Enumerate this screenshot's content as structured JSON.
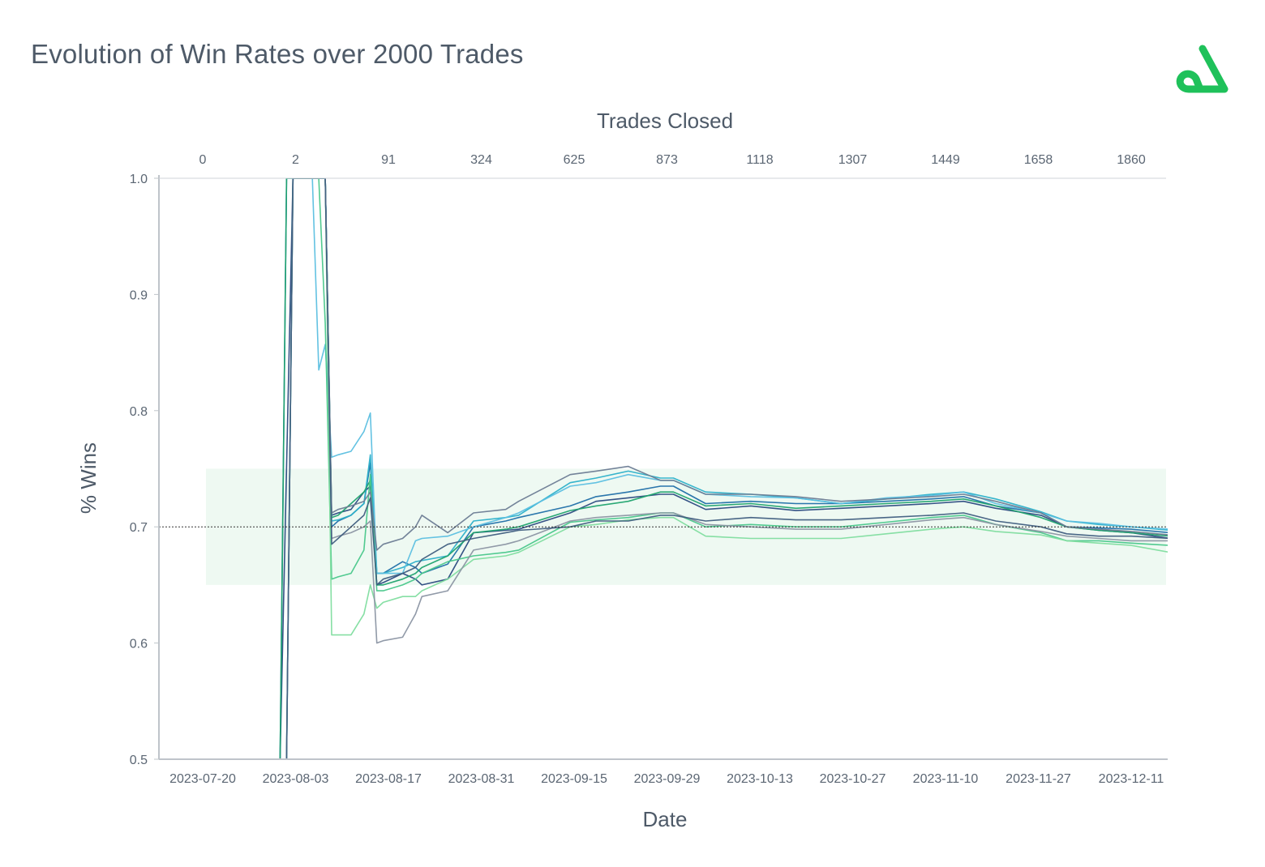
{
  "title": "Evolution of Win Rates over 2000 Trades",
  "logo": {
    "icon": "brand-logo-icon",
    "color": "#1fc15a"
  },
  "chart_data": {
    "type": "line",
    "title": "Evolution of Win Rates over 2000 Trades",
    "xlabel": "Date",
    "x2label": "Trades Closed",
    "ylabel": "% Wins",
    "ylim": [
      0.5,
      1.0
    ],
    "yticks": [
      "0.5",
      "0.6",
      "0.7",
      "0.8",
      "0.9",
      "1.0"
    ],
    "xticks": [
      "2023-07-20",
      "2023-08-03",
      "2023-08-17",
      "2023-08-31",
      "2023-09-15",
      "2023-09-29",
      "2023-10-13",
      "2023-10-27",
      "2023-11-10",
      "2023-11-27",
      "2023-12-11"
    ],
    "x2ticks": [
      "0",
      "2",
      "91",
      "324",
      "625",
      "873",
      "1118",
      "1307",
      "1449",
      "1658",
      "1860"
    ],
    "reference_line": 0.7,
    "band": [
      0.65,
      0.75
    ],
    "grid": false,
    "legend": "none",
    "colors": {
      "band": "#eef9f2",
      "reference": "#333333",
      "axis": "#bfc4ca",
      "series": [
        "#2a4a7f",
        "#1f6fa8",
        "#2bb0c9",
        "#5bbfe0",
        "#1fa36e",
        "#48c78a",
        "#7fdd9f",
        "#6b7c93",
        "#8b95a3",
        "#3f5e80"
      ]
    },
    "series": [
      {
        "x": [
          "2023-07-20",
          "2023-08-01",
          "2023-08-03",
          "2023-08-04",
          "2023-08-08",
          "2023-08-09",
          "2023-08-10",
          "2023-08-12",
          "2023-08-14",
          "2023-08-15",
          "2023-08-16",
          "2023-08-17",
          "2023-08-20",
          "2023-08-22",
          "2023-08-23",
          "2023-08-27",
          "2023-08-31",
          "2023-09-05",
          "2023-09-07",
          "2023-09-15",
          "2023-09-19",
          "2023-09-24",
          "2023-09-29",
          "2023-10-01",
          "2023-10-06",
          "2023-10-13",
          "2023-10-20",
          "2023-10-27",
          "2023-11-03",
          "2023-11-10",
          "2023-11-15",
          "2023-11-20",
          "2023-11-27",
          "2023-12-01",
          "2023-12-06",
          "2023-12-11",
          "2023-12-17"
        ],
        "y": [
          0.5,
          0.5,
          1.0,
          1.0,
          1.0,
          0.71,
          0.712,
          0.715,
          0.73,
          0.735,
          0.65,
          0.652,
          0.66,
          0.655,
          0.65,
          0.655,
          0.695,
          0.697,
          0.698,
          0.712,
          0.722,
          0.725,
          0.728,
          0.728,
          0.715,
          0.718,
          0.714,
          0.716,
          0.718,
          0.72,
          0.722,
          0.716,
          0.71,
          0.7,
          0.697,
          0.695,
          0.69
        ]
      },
      {
        "x": [
          "2023-07-20",
          "2023-08-01",
          "2023-08-02",
          "2023-08-04",
          "2023-08-08",
          "2023-08-09",
          "2023-08-10",
          "2023-08-12",
          "2023-08-14",
          "2023-08-15",
          "2023-08-16",
          "2023-08-17",
          "2023-08-20",
          "2023-08-22",
          "2023-08-23",
          "2023-08-27",
          "2023-08-31",
          "2023-09-05",
          "2023-09-07",
          "2023-09-15",
          "2023-09-19",
          "2023-09-24",
          "2023-09-29",
          "2023-10-01",
          "2023-10-06",
          "2023-10-13",
          "2023-10-20",
          "2023-10-27",
          "2023-11-03",
          "2023-11-10",
          "2023-11-15",
          "2023-11-20",
          "2023-11-27",
          "2023-12-01",
          "2023-12-06",
          "2023-12-11",
          "2023-12-17"
        ],
        "y": [
          0.5,
          0.5,
          1.0,
          1.0,
          1.0,
          0.7,
          0.705,
          0.71,
          0.72,
          0.755,
          0.66,
          0.66,
          0.67,
          0.665,
          0.66,
          0.668,
          0.7,
          0.705,
          0.708,
          0.718,
          0.726,
          0.73,
          0.735,
          0.735,
          0.72,
          0.722,
          0.72,
          0.72,
          0.722,
          0.724,
          0.726,
          0.718,
          0.712,
          0.7,
          0.699,
          0.698,
          0.695
        ]
      },
      {
        "x": [
          "2023-07-20",
          "2023-08-02",
          "2023-08-03",
          "2023-08-08",
          "2023-08-09",
          "2023-08-10",
          "2023-08-12",
          "2023-08-14",
          "2023-08-15",
          "2023-08-16",
          "2023-08-17",
          "2023-08-20",
          "2023-08-22",
          "2023-08-27",
          "2023-08-31",
          "2023-09-05",
          "2023-09-07",
          "2023-09-15",
          "2023-09-19",
          "2023-09-24",
          "2023-09-29",
          "2023-10-01",
          "2023-10-06",
          "2023-10-13",
          "2023-10-20",
          "2023-10-27",
          "2023-11-03",
          "2023-11-10",
          "2023-11-15",
          "2023-11-20",
          "2023-11-27",
          "2023-12-01",
          "2023-12-06",
          "2023-12-11",
          "2023-12-17"
        ],
        "y": [
          0.5,
          0.5,
          1.0,
          1.0,
          0.705,
          0.706,
          0.71,
          0.72,
          0.762,
          0.66,
          0.66,
          0.665,
          0.67,
          0.675,
          0.705,
          0.708,
          0.71,
          0.738,
          0.742,
          0.748,
          0.742,
          0.742,
          0.73,
          0.728,
          0.725,
          0.72,
          0.724,
          0.728,
          0.73,
          0.724,
          0.713,
          0.705,
          0.702,
          0.7,
          0.697
        ]
      },
      {
        "x": [
          "2023-08-06",
          "2023-08-07",
          "2023-08-08",
          "2023-08-09",
          "2023-08-10",
          "2023-08-12",
          "2023-08-14",
          "2023-08-15",
          "2023-08-16",
          "2023-08-17",
          "2023-08-20",
          "2023-08-22",
          "2023-08-23",
          "2023-08-27",
          "2023-08-31",
          "2023-09-05",
          "2023-09-07",
          "2023-09-15",
          "2023-09-19",
          "2023-09-24",
          "2023-09-29",
          "2023-10-01",
          "2023-10-06",
          "2023-10-13",
          "2023-10-20",
          "2023-10-27",
          "2023-11-03",
          "2023-11-10",
          "2023-11-15",
          "2023-11-20",
          "2023-11-27",
          "2023-12-01",
          "2023-12-06",
          "2023-12-11",
          "2023-12-17"
        ],
        "y": [
          1.0,
          0.835,
          0.857,
          0.76,
          0.762,
          0.765,
          0.782,
          0.798,
          0.66,
          0.66,
          0.66,
          0.688,
          0.69,
          0.692,
          0.7,
          0.708,
          0.712,
          0.735,
          0.738,
          0.745,
          0.74,
          0.74,
          0.728,
          0.726,
          0.725,
          0.72,
          0.725,
          0.727,
          0.73,
          0.72,
          0.712,
          0.705,
          0.703,
          0.7,
          0.698
        ]
      },
      {
        "x": [
          "2023-07-20",
          "2023-08-01",
          "2023-08-02",
          "2023-08-08",
          "2023-08-09",
          "2023-08-10",
          "2023-08-12",
          "2023-08-14",
          "2023-08-15",
          "2023-08-16",
          "2023-08-17",
          "2023-08-20",
          "2023-08-22",
          "2023-08-23",
          "2023-08-27",
          "2023-08-31",
          "2023-09-05",
          "2023-09-07",
          "2023-09-15",
          "2023-09-19",
          "2023-09-24",
          "2023-09-29",
          "2023-10-01",
          "2023-10-06",
          "2023-10-13",
          "2023-10-20",
          "2023-10-27",
          "2023-11-03",
          "2023-11-10",
          "2023-11-15",
          "2023-11-20",
          "2023-11-27",
          "2023-12-01",
          "2023-12-06",
          "2023-12-11",
          "2023-12-17"
        ],
        "y": [
          0.5,
          0.5,
          1.0,
          1.0,
          0.708,
          0.71,
          0.72,
          0.73,
          0.74,
          0.65,
          0.65,
          0.655,
          0.66,
          0.665,
          0.675,
          0.695,
          0.698,
          0.7,
          0.714,
          0.718,
          0.722,
          0.73,
          0.73,
          0.718,
          0.72,
          0.716,
          0.718,
          0.72,
          0.722,
          0.724,
          0.718,
          0.708,
          0.7,
          0.697,
          0.695,
          0.692
        ]
      },
      {
        "x": [
          "2023-07-20",
          "2023-08-02",
          "2023-08-03",
          "2023-08-07",
          "2023-08-08",
          "2023-08-09",
          "2023-08-10",
          "2023-08-12",
          "2023-08-14",
          "2023-08-15",
          "2023-08-16",
          "2023-08-17",
          "2023-08-20",
          "2023-08-22",
          "2023-08-23",
          "2023-08-27",
          "2023-08-31",
          "2023-09-05",
          "2023-09-07",
          "2023-09-15",
          "2023-09-19",
          "2023-09-24",
          "2023-09-29",
          "2023-10-01",
          "2023-10-06",
          "2023-10-13",
          "2023-10-20",
          "2023-10-27",
          "2023-11-03",
          "2023-11-10",
          "2023-11-15",
          "2023-11-20",
          "2023-11-27",
          "2023-12-01",
          "2023-12-06",
          "2023-12-11",
          "2023-12-17"
        ],
        "y": [
          0.5,
          0.5,
          1.0,
          1.0,
          0.875,
          0.655,
          0.657,
          0.66,
          0.68,
          0.745,
          0.645,
          0.645,
          0.65,
          0.655,
          0.66,
          0.67,
          0.675,
          0.678,
          0.68,
          0.704,
          0.706,
          0.708,
          0.712,
          0.712,
          0.7,
          0.702,
          0.7,
          0.7,
          0.704,
          0.708,
          0.71,
          0.702,
          0.695,
          0.688,
          0.688,
          0.686,
          0.684
        ]
      },
      {
        "x": [
          "2023-08-08",
          "2023-08-09",
          "2023-08-10",
          "2023-08-12",
          "2023-08-14",
          "2023-08-15",
          "2023-08-16",
          "2023-08-17",
          "2023-08-20",
          "2023-08-22",
          "2023-08-23",
          "2023-08-27",
          "2023-08-31",
          "2023-09-05",
          "2023-09-07",
          "2023-09-15",
          "2023-09-19",
          "2023-09-24",
          "2023-09-29",
          "2023-10-01",
          "2023-10-06",
          "2023-10-13",
          "2023-10-20",
          "2023-10-27",
          "2023-11-03",
          "2023-11-10",
          "2023-11-15",
          "2023-11-20",
          "2023-11-27",
          "2023-12-01",
          "2023-12-06",
          "2023-12-11",
          "2023-12-17"
        ],
        "y": [
          1.0,
          0.607,
          0.607,
          0.607,
          0.625,
          0.65,
          0.63,
          0.635,
          0.64,
          0.64,
          0.645,
          0.655,
          0.672,
          0.675,
          0.678,
          0.7,
          0.702,
          0.706,
          0.708,
          0.708,
          0.692,
          0.69,
          0.69,
          0.69,
          0.694,
          0.698,
          0.7,
          0.696,
          0.693,
          0.688,
          0.686,
          0.684,
          0.678
        ]
      },
      {
        "x": [
          "2023-07-20",
          "2023-08-02",
          "2023-08-03",
          "2023-08-08",
          "2023-08-09",
          "2023-08-10",
          "2023-08-12",
          "2023-08-14",
          "2023-08-15",
          "2023-08-16",
          "2023-08-17",
          "2023-08-20",
          "2023-08-22",
          "2023-08-23",
          "2023-08-27",
          "2023-08-31",
          "2023-09-05",
          "2023-09-07",
          "2023-09-15",
          "2023-09-19",
          "2023-09-24",
          "2023-09-29",
          "2023-10-01",
          "2023-10-06",
          "2023-10-13",
          "2023-10-20",
          "2023-10-27",
          "2023-11-03",
          "2023-11-10",
          "2023-11-15",
          "2023-11-20",
          "2023-11-27",
          "2023-12-01",
          "2023-12-06",
          "2023-12-11",
          "2023-12-17"
        ],
        "y": [
          0.5,
          0.5,
          1.0,
          1.0,
          0.712,
          0.715,
          0.718,
          0.722,
          0.73,
          0.68,
          0.685,
          0.69,
          0.7,
          0.71,
          0.695,
          0.712,
          0.715,
          0.722,
          0.745,
          0.748,
          0.752,
          0.74,
          0.74,
          0.728,
          0.728,
          0.726,
          0.722,
          0.724,
          0.726,
          0.728,
          0.722,
          0.712,
          0.7,
          0.698,
          0.696,
          0.693
        ]
      },
      {
        "x": [
          "2023-08-08",
          "2023-08-09",
          "2023-08-10",
          "2023-08-12",
          "2023-08-14",
          "2023-08-15",
          "2023-08-16",
          "2023-08-17",
          "2023-08-20",
          "2023-08-22",
          "2023-08-23",
          "2023-08-27",
          "2023-08-31",
          "2023-09-05",
          "2023-09-07",
          "2023-09-15",
          "2023-09-19",
          "2023-09-24",
          "2023-09-29",
          "2023-10-01",
          "2023-10-06",
          "2023-10-13",
          "2023-10-20",
          "2023-10-27",
          "2023-11-03",
          "2023-11-10",
          "2023-11-15",
          "2023-11-20",
          "2023-11-27",
          "2023-12-01",
          "2023-12-06",
          "2023-12-11",
          "2023-12-17"
        ],
        "y": [
          1.0,
          0.69,
          0.692,
          0.695,
          0.7,
          0.705,
          0.6,
          0.602,
          0.605,
          0.625,
          0.64,
          0.645,
          0.68,
          0.685,
          0.688,
          0.705,
          0.708,
          0.71,
          0.712,
          0.712,
          0.702,
          0.7,
          0.698,
          0.698,
          0.702,
          0.706,
          0.708,
          0.702,
          0.696,
          0.692,
          0.69,
          0.688,
          0.688
        ]
      },
      {
        "x": [
          "2023-07-20",
          "2023-08-02",
          "2023-08-03",
          "2023-08-08",
          "2023-08-09",
          "2023-08-10",
          "2023-08-12",
          "2023-08-14",
          "2023-08-15",
          "2023-08-16",
          "2023-08-17",
          "2023-08-20",
          "2023-08-22",
          "2023-08-23",
          "2023-08-27",
          "2023-08-31",
          "2023-09-05",
          "2023-09-07",
          "2023-09-15",
          "2023-09-19",
          "2023-09-24",
          "2023-09-29",
          "2023-10-01",
          "2023-10-06",
          "2023-10-13",
          "2023-10-20",
          "2023-10-27",
          "2023-11-03",
          "2023-11-10",
          "2023-11-15",
          "2023-11-20",
          "2023-11-27",
          "2023-12-01",
          "2023-12-06",
          "2023-12-11",
          "2023-12-17"
        ],
        "y": [
          0.5,
          0.5,
          1.0,
          1.0,
          0.685,
          0.69,
          0.7,
          0.71,
          0.725,
          0.65,
          0.655,
          0.66,
          0.665,
          0.672,
          0.685,
          0.69,
          0.695,
          0.697,
          0.7,
          0.705,
          0.705,
          0.71,
          0.71,
          0.705,
          0.708,
          0.706,
          0.706,
          0.708,
          0.71,
          0.712,
          0.705,
          0.7,
          0.694,
          0.692,
          0.692,
          0.69
        ]
      }
    ]
  }
}
